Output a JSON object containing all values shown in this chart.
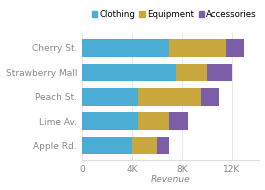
{
  "categories": [
    "Apple Rd.",
    "Lime Av.",
    "Peach St.",
    "Strawberry Mall",
    "Cherry St."
  ],
  "clothing": [
    4000,
    4500,
    4500,
    7500,
    7000
  ],
  "equipment": [
    2000,
    2500,
    5000,
    2500,
    4500
  ],
  "accessories": [
    1000,
    1500,
    1500,
    2000,
    1500
  ],
  "colors": {
    "clothing": "#4badd4",
    "equipment": "#c8a83c",
    "accessories": "#7b5ea7"
  },
  "xlabel": "Revenue",
  "xticks": [
    0,
    4000,
    8000,
    12000
  ],
  "xticklabels": [
    "0",
    "4K",
    "8K",
    "12K"
  ],
  "xlim": [
    0,
    14200
  ],
  "bar_height": 0.72,
  "background_color": "#ffffff",
  "fontsize_labels": 6.5,
  "fontsize_ticks": 6.5,
  "fontsize_legend": 6.2
}
